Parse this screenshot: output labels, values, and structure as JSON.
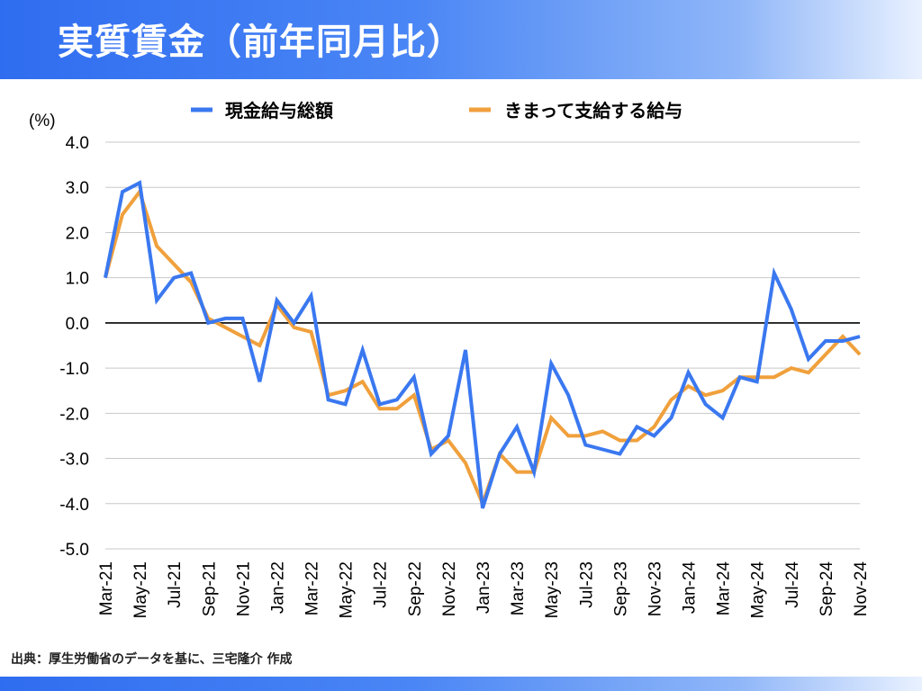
{
  "header": {
    "title": "実質賃金（前年同月比）"
  },
  "source": "出典：厚生労働省のデータを基に、三宅隆介 作成",
  "colors": {
    "series1": "#3a78f0",
    "series2": "#f0a03c",
    "accent": "#2f6df0"
  },
  "chart_data": {
    "type": "line",
    "ylabel": "(%)",
    "ylim": [
      -5.0,
      4.0
    ],
    "yticks": [
      "4.0",
      "3.0",
      "2.0",
      "1.0",
      "0.0",
      "-1.0",
      "-2.0",
      "-3.0",
      "-4.0",
      "-5.0"
    ],
    "grid": true,
    "legend": "top",
    "x": [
      "Mar-21",
      "Apr-21",
      "May-21",
      "Jun-21",
      "Jul-21",
      "Aug-21",
      "Sep-21",
      "Oct-21",
      "Nov-21",
      "Dec-21",
      "Jan-22",
      "Feb-22",
      "Mar-22",
      "Apr-22",
      "May-22",
      "Jun-22",
      "Jul-22",
      "Aug-22",
      "Sep-22",
      "Oct-22",
      "Nov-22",
      "Dec-22",
      "Jan-23",
      "Feb-23",
      "Mar-23",
      "Apr-23",
      "May-23",
      "Jun-23",
      "Jul-23",
      "Aug-23",
      "Sep-23",
      "Oct-23",
      "Nov-23",
      "Dec-23",
      "Jan-24",
      "Feb-24",
      "Mar-24",
      "Apr-24",
      "May-24",
      "Jun-24",
      "Jul-24",
      "Aug-24",
      "Sep-24",
      "Oct-24",
      "Nov-24"
    ],
    "xtick_labels": [
      "Mar-21",
      "May-21",
      "Jul-21",
      "Sep-21",
      "Nov-21",
      "Jan-22",
      "Mar-22",
      "May-22",
      "Jul-22",
      "Sep-22",
      "Nov-22",
      "Jan-23",
      "Mar-23",
      "May-23",
      "Jul-23",
      "Sep-23",
      "Nov-23",
      "Jan-24",
      "Mar-24",
      "May-24",
      "Jul-24",
      "Sep-24",
      "Nov-24"
    ],
    "series": [
      {
        "name": "現金給与総額",
        "values": [
          1.0,
          2.9,
          3.1,
          0.5,
          1.0,
          1.1,
          0.0,
          0.1,
          0.1,
          -1.3,
          0.5,
          0.0,
          0.6,
          -1.7,
          -1.8,
          -0.6,
          -1.8,
          -1.7,
          -1.2,
          -2.9,
          -2.5,
          -0.6,
          -4.1,
          -2.9,
          -2.3,
          -3.3,
          -0.9,
          -1.6,
          -2.7,
          -2.8,
          -2.9,
          -2.3,
          -2.5,
          -2.1,
          -1.1,
          -1.8,
          -2.1,
          -1.2,
          -1.3,
          1.1,
          0.3,
          -0.8,
          -0.4,
          -0.4,
          -0.3
        ]
      },
      {
        "name": "きまって支給する給与",
        "values": [
          1.0,
          2.4,
          2.9,
          1.7,
          1.3,
          0.9,
          0.1,
          -0.1,
          -0.3,
          -0.5,
          0.4,
          -0.1,
          -0.2,
          -1.6,
          -1.5,
          -1.3,
          -1.9,
          -1.9,
          -1.6,
          -2.8,
          -2.6,
          -3.1,
          -4.0,
          -2.9,
          -3.3,
          -3.3,
          -2.1,
          -2.5,
          -2.5,
          -2.4,
          -2.6,
          -2.6,
          -2.3,
          -1.7,
          -1.4,
          -1.6,
          -1.5,
          -1.2,
          -1.2,
          -1.2,
          -1.0,
          -1.1,
          -0.7,
          -0.3,
          -0.7
        ]
      }
    ]
  }
}
